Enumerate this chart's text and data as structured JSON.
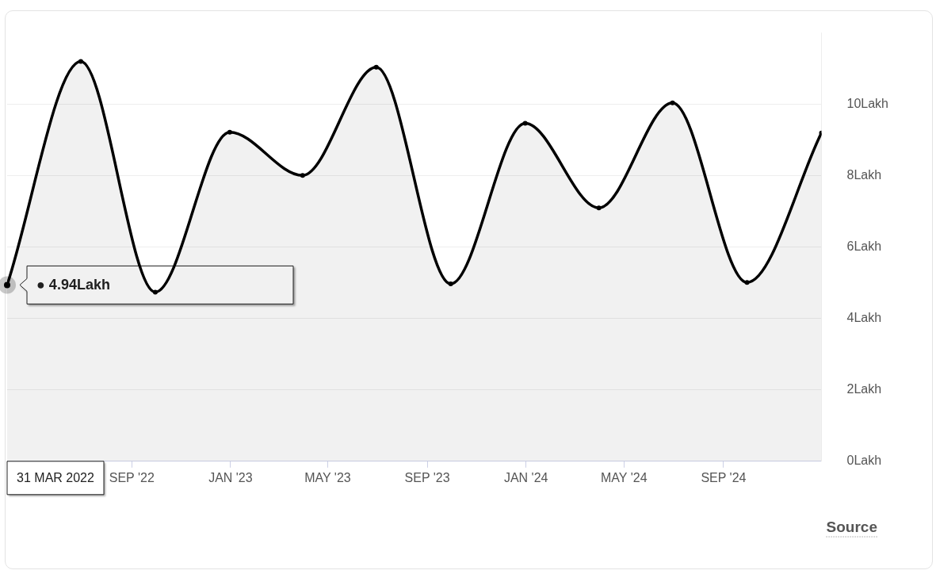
{
  "chart_data": {
    "type": "area",
    "x": [
      "2022-03-31",
      "2022-06-30",
      "2022-09-30",
      "2022-12-31",
      "2023-03-31",
      "2023-06-30",
      "2023-09-30",
      "2023-12-31",
      "2024-03-31",
      "2024-06-30",
      "2024-09-30",
      "2024-12-31"
    ],
    "series": [
      {
        "color": "#000000",
        "values": [
          4.94,
          11.2,
          4.74,
          9.22,
          8.01,
          11.04,
          4.97,
          9.47,
          7.1,
          10.04,
          5.01,
          9.2
        ]
      }
    ],
    "xlim": [
      "2022-03-31",
      "2024-12-31"
    ],
    "xticks": [
      {
        "value": "2022-09-01",
        "label": "SEP '22"
      },
      {
        "value": "2023-01-01",
        "label": "JAN '23"
      },
      {
        "value": "2023-05-01",
        "label": "MAY '23"
      },
      {
        "value": "2023-09-01",
        "label": "SEP '23"
      },
      {
        "value": "2024-01-01",
        "label": "JAN '24"
      },
      {
        "value": "2024-05-01",
        "label": "MAY '24"
      },
      {
        "value": "2024-09-01",
        "label": "SEP '24"
      }
    ],
    "ylim": [
      0,
      12
    ],
    "yticks": [
      {
        "value": 0,
        "label": "0Lakh"
      },
      {
        "value": 2,
        "label": "2Lakh"
      },
      {
        "value": 4,
        "label": "4Lakh"
      },
      {
        "value": 6,
        "label": "6Lakh"
      },
      {
        "value": 8,
        "label": "8Lakh"
      },
      {
        "value": 10,
        "label": "10Lakh"
      }
    ],
    "grid": "y",
    "legend": false,
    "marker": "circle",
    "annotations": [
      "● 4.94Lakh",
      "31 MAR 2022",
      "Source"
    ]
  }
}
